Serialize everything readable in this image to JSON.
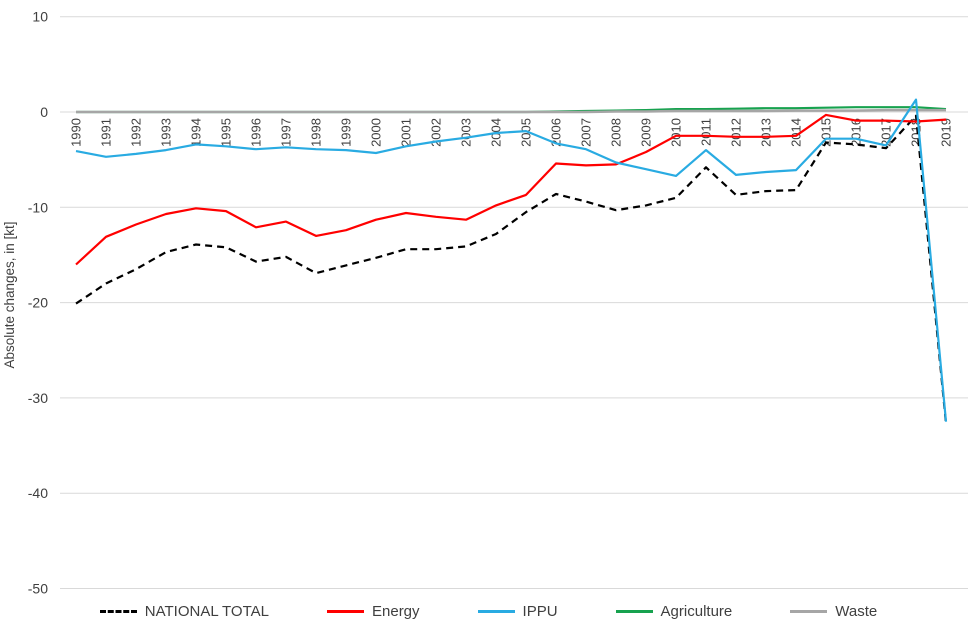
{
  "chart_data": {
    "type": "line",
    "title": "",
    "ylabel": "Absolute changes, in [kt]",
    "xlabel": "",
    "ylim": [
      -50,
      10
    ],
    "yticks": [
      10,
      0,
      -10,
      -20,
      -30,
      -40,
      -50
    ],
    "grid": "horizontal",
    "legend_position": "bottom",
    "x": [
      1990,
      1991,
      1992,
      1993,
      1994,
      1995,
      1996,
      1997,
      1998,
      1999,
      2000,
      2001,
      2002,
      2003,
      2004,
      2005,
      2006,
      2007,
      2008,
      2009,
      2010,
      2011,
      2012,
      2013,
      2014,
      2015,
      2016,
      2017,
      2018,
      2019
    ],
    "series": [
      {
        "name": "NATIONAL TOTAL",
        "color": "#000000",
        "dash": "7 5",
        "width": 2.2,
        "values": [
          -20.1,
          -18.0,
          -16.5,
          -14.7,
          -13.9,
          -14.2,
          -15.7,
          -15.2,
          -16.9,
          -16.1,
          -15.3,
          -14.4,
          -14.4,
          -14.1,
          -12.8,
          -10.5,
          -8.6,
          -9.4,
          -10.3,
          -9.8,
          -9.0,
          -5.8,
          -8.7,
          -8.3,
          -8.2,
          -3.2,
          -3.4,
          -3.8,
          -0.4,
          -32.7
        ]
      },
      {
        "name": "Energy",
        "color": "#FF0000",
        "dash": null,
        "width": 2.2,
        "values": [
          -16.0,
          -13.1,
          -11.8,
          -10.7,
          -10.1,
          -10.4,
          -12.1,
          -11.5,
          -13.0,
          -12.4,
          -11.3,
          -10.6,
          -11.0,
          -11.3,
          -9.8,
          -8.7,
          -5.4,
          -5.6,
          -5.5,
          -4.2,
          -2.5,
          -2.5,
          -2.6,
          -2.6,
          -2.5,
          -0.3,
          -0.9,
          -0.9,
          -1.0,
          -0.8
        ]
      },
      {
        "name": "IPPU",
        "color": "#29ABE2",
        "dash": null,
        "width": 2.2,
        "values": [
          -4.1,
          -4.7,
          -4.4,
          -4.0,
          -3.4,
          -3.6,
          -3.9,
          -3.7,
          -3.9,
          -4.0,
          -4.3,
          -3.6,
          -3.1,
          -2.7,
          -2.2,
          -2.0,
          -3.3,
          -3.9,
          -5.3,
          -6.0,
          -6.7,
          -4.0,
          -6.6,
          -6.3,
          -6.1,
          -2.8,
          -2.8,
          -3.5,
          1.3,
          -32.5
        ]
      },
      {
        "name": "Agriculture",
        "color": "#17A24F",
        "dash": null,
        "width": 2.2,
        "values": [
          0,
          0,
          0,
          0,
          0,
          0,
          0,
          0,
          0,
          0,
          0,
          0,
          0,
          0,
          0,
          0,
          0.05,
          0.1,
          0.15,
          0.2,
          0.3,
          0.3,
          0.35,
          0.4,
          0.4,
          0.45,
          0.5,
          0.5,
          0.5,
          0.3
        ]
      },
      {
        "name": "Waste",
        "color": "#A6A6A6",
        "dash": null,
        "width": 2.5,
        "values": [
          0,
          0,
          0,
          0,
          0,
          0,
          0,
          0,
          0,
          0,
          0,
          0,
          0,
          0,
          0,
          0,
          0,
          0,
          0.05,
          0.05,
          0.1,
          0.1,
          0.1,
          0.1,
          0.15,
          0.15,
          0.15,
          0.2,
          0.2,
          0.2
        ]
      }
    ],
    "colors": {
      "gridline": "#D9D9D9",
      "axis_text": "#3f3f3f"
    }
  }
}
